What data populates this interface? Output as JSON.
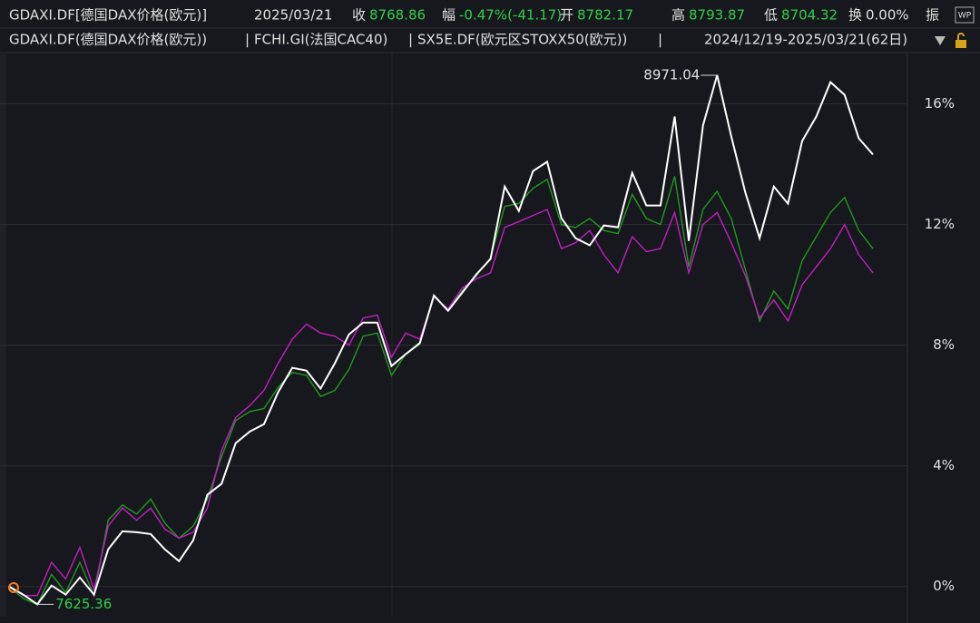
{
  "header": {
    "symbol": "GDAXI.DF[德国DAX价格(欧元)]",
    "date": "2025/03/21",
    "fields": [
      {
        "label": "收",
        "value": "8768.86"
      },
      {
        "label": "幅",
        "value": "-0.47%(-41.17)"
      },
      {
        "label": "开",
        "value": "8782.17"
      },
      {
        "label": "高",
        "value": "8793.87"
      },
      {
        "label": "低",
        "value": "8704.32"
      },
      {
        "label": "换",
        "value": "0.00%"
      }
    ],
    "more": "振",
    "icon_text": "WP"
  },
  "chart_data": {
    "type": "line",
    "separator": "|",
    "range_label": "2024/12/19-2025/03/21(62日)",
    "max_label": "8971.04",
    "min_label": "7625.36",
    "ylim": [
      -1,
      17.7
    ],
    "yticks": [
      {
        "value": 0,
        "label": "0%"
      },
      {
        "value": 4,
        "label": "4%"
      },
      {
        "value": 8,
        "label": "8%"
      },
      {
        "value": 12,
        "label": "12%"
      },
      {
        "value": 16,
        "label": "16%"
      }
    ],
    "grid": true,
    "series": [
      {
        "name": "GDAXI.DF(德国DAX价格(欧元))",
        "color": "#ffffff",
        "values": [
          0,
          -0.27,
          -0.59,
          0.03,
          -0.27,
          0.3,
          -0.27,
          1.23,
          1.83,
          1.8,
          1.74,
          1.23,
          0.84,
          1.53,
          3.04,
          3.4,
          4.75,
          5.14,
          5.38,
          6.44,
          7.25,
          7.16,
          6.56,
          7.4,
          8.36,
          8.75,
          8.75,
          7.31,
          7.7,
          8.06,
          9.65,
          9.14,
          9.74,
          10.35,
          10.86,
          13.26,
          12.45,
          13.77,
          14.08,
          12.21,
          11.55,
          11.31,
          11.97,
          11.91,
          13.71,
          12.63,
          12.63,
          15.58,
          11.46,
          15.28,
          16.95,
          14.92,
          13.05,
          11.55,
          13.26,
          12.69,
          14.77,
          15.58,
          16.72,
          16.3,
          14.86,
          14.32
        ]
      },
      {
        "name": "FCHI.GI(法国CAC40)",
        "color": "#c21ec2",
        "values": [
          0,
          -0.3,
          -0.3,
          0.8,
          0.25,
          1.3,
          -0.1,
          2.0,
          2.6,
          2.2,
          2.6,
          1.9,
          1.6,
          1.8,
          2.6,
          4.5,
          5.6,
          6.0,
          6.5,
          7.4,
          8.2,
          8.7,
          8.4,
          8.3,
          8.0,
          8.9,
          9.0,
          7.6,
          8.4,
          8.2,
          9.6,
          9.2,
          9.9,
          10.2,
          10.4,
          11.9,
          12.1,
          12.3,
          12.5,
          11.2,
          11.4,
          11.8,
          11.0,
          10.4,
          11.6,
          11.1,
          11.2,
          12.4,
          10.4,
          12.0,
          12.4,
          11.4,
          10.3,
          8.9,
          9.5,
          8.8,
          10.0,
          10.6,
          11.2,
          12.0,
          11.0,
          10.4
        ]
      },
      {
        "name": "SX5E.DF(欧元区STOXX50(欧元))",
        "color": "#1f9a1f",
        "values": [
          0,
          -0.4,
          -0.6,
          0.4,
          -0.2,
          0.8,
          -0.3,
          2.2,
          2.7,
          2.4,
          2.9,
          2.1,
          1.6,
          2.0,
          2.9,
          4.3,
          5.5,
          5.8,
          5.9,
          6.6,
          7.1,
          7.0,
          6.3,
          6.5,
          7.2,
          8.3,
          8.4,
          7.0,
          7.7,
          8.1,
          9.6,
          9.2,
          9.8,
          10.3,
          10.9,
          12.6,
          12.7,
          13.2,
          13.5,
          12.0,
          11.9,
          12.2,
          11.8,
          11.7,
          13.0,
          12.2,
          12.0,
          13.6,
          10.6,
          12.5,
          13.1,
          12.2,
          10.5,
          8.8,
          9.8,
          9.2,
          10.8,
          11.6,
          12.4,
          12.9,
          11.8,
          11.2
        ]
      }
    ]
  }
}
